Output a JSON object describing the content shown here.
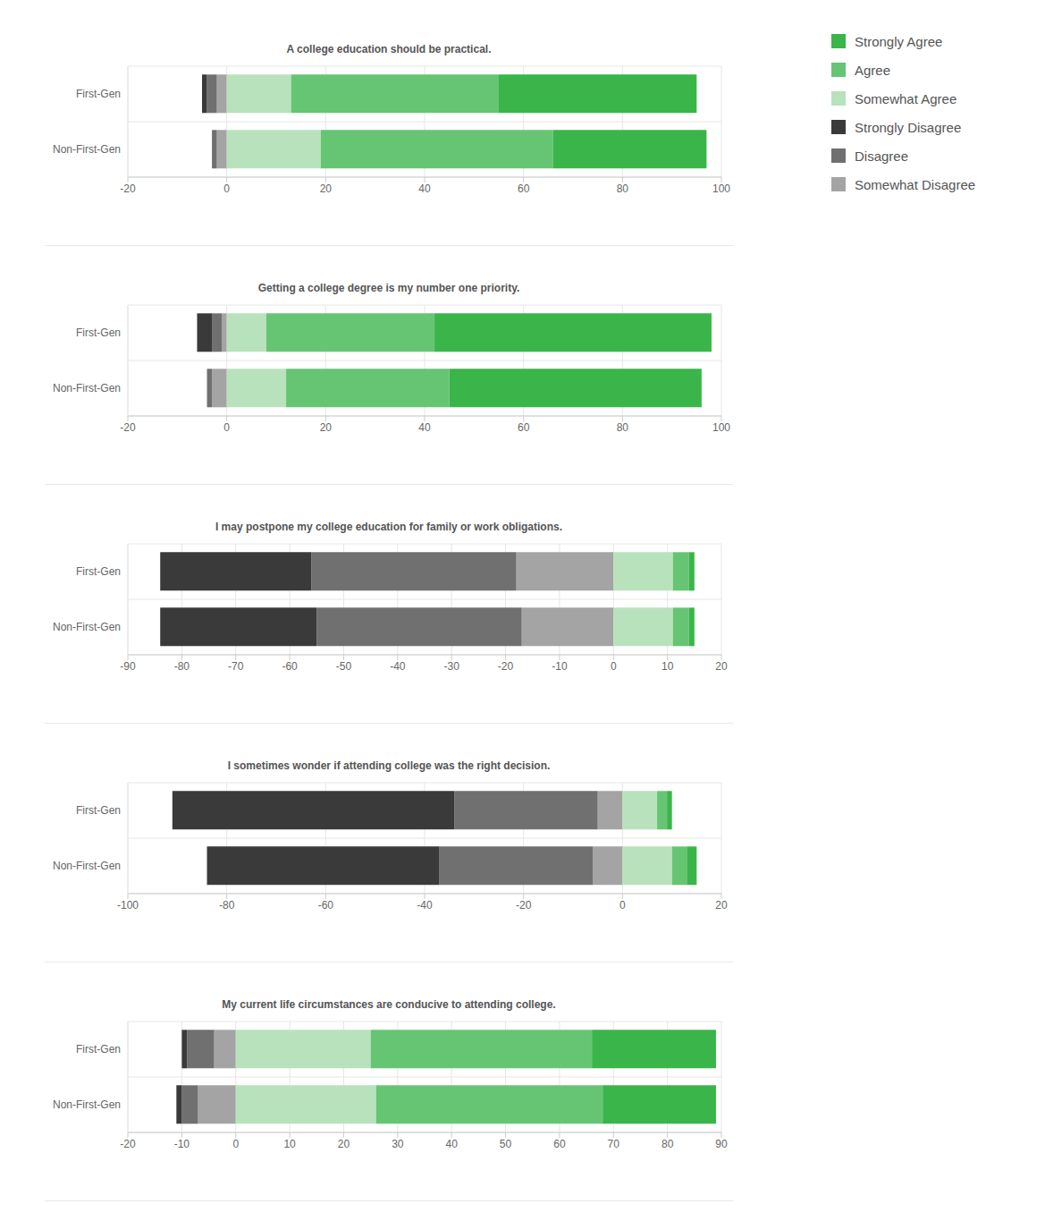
{
  "chart_data": [
    {
      "type": "bar",
      "orientation": "horizontal",
      "stacked": true,
      "grid": true,
      "legend": "top right",
      "title": "A college education should be practical.",
      "categories": [
        "First-Gen",
        "Non-First-Gen"
      ],
      "xlim": [
        -20,
        100
      ],
      "xticks": [
        -20,
        0,
        20,
        40,
        60,
        80,
        100
      ],
      "series": [
        {
          "name": "Strongly Agree",
          "color": "#3ab54a",
          "values": [
            40,
            31
          ]
        },
        {
          "name": "Agree",
          "color": "#66c573",
          "values": [
            42,
            47
          ]
        },
        {
          "name": "Somewhat Agree",
          "color": "#b8e2bc",
          "values": [
            13,
            19
          ]
        },
        {
          "name": "Strongly Disagree",
          "color": "#3a3a3a",
          "values": [
            -1,
            0
          ]
        },
        {
          "name": "Disagree",
          "color": "#707070",
          "values": [
            -2,
            -1
          ]
        },
        {
          "name": "Somewhat Disagree",
          "color": "#a4a4a4",
          "values": [
            -2,
            -2
          ]
        }
      ]
    },
    {
      "type": "bar",
      "orientation": "horizontal",
      "stacked": true,
      "grid": true,
      "title": "Getting a college degree is my number one priority.",
      "categories": [
        "First-Gen",
        "Non-First-Gen"
      ],
      "xlim": [
        -20,
        100
      ],
      "xticks": [
        -20,
        0,
        20,
        40,
        60,
        80,
        100
      ],
      "series": [
        {
          "name": "Strongly Agree",
          "color": "#3ab54a",
          "values": [
            56,
            51
          ]
        },
        {
          "name": "Agree",
          "color": "#66c573",
          "values": [
            34,
            33
          ]
        },
        {
          "name": "Somewhat Agree",
          "color": "#b8e2bc",
          "values": [
            8,
            12
          ]
        },
        {
          "name": "Strongly Disagree",
          "color": "#3a3a3a",
          "values": [
            -3,
            0
          ]
        },
        {
          "name": "Disagree",
          "color": "#707070",
          "values": [
            -2,
            -1
          ]
        },
        {
          "name": "Somewhat Disagree",
          "color": "#a4a4a4",
          "values": [
            -1,
            -3
          ]
        }
      ]
    },
    {
      "type": "bar",
      "orientation": "horizontal",
      "stacked": true,
      "grid": true,
      "title": "I may postpone my college education for family or work obligations.",
      "categories": [
        "First-Gen",
        "Non-First-Gen"
      ],
      "xlim": [
        -90,
        20
      ],
      "xticks": [
        -90,
        -80,
        -70,
        -60,
        -50,
        -40,
        -30,
        -20,
        -10,
        0,
        10,
        20
      ],
      "series": [
        {
          "name": "Strongly Agree",
          "color": "#3ab54a",
          "values": [
            1,
            1
          ]
        },
        {
          "name": "Agree",
          "color": "#66c573",
          "values": [
            3,
            3
          ]
        },
        {
          "name": "Somewhat Agree",
          "color": "#b8e2bc",
          "values": [
            11,
            11
          ]
        },
        {
          "name": "Strongly Disagree",
          "color": "#3a3a3a",
          "values": [
            -28,
            -29
          ]
        },
        {
          "name": "Disagree",
          "color": "#707070",
          "values": [
            -38,
            -38
          ]
        },
        {
          "name": "Somewhat Disagree",
          "color": "#a4a4a4",
          "values": [
            -18,
            -17
          ]
        }
      ]
    },
    {
      "type": "bar",
      "orientation": "horizontal",
      "stacked": true,
      "grid": true,
      "title": "I sometimes wonder if attending college was the right decision.",
      "categories": [
        "First-Gen",
        "Non-First-Gen"
      ],
      "xlim": [
        -100,
        20
      ],
      "xticks": [
        -100,
        -80,
        -60,
        -40,
        -20,
        0,
        20
      ],
      "series": [
        {
          "name": "Strongly Agree",
          "color": "#3ab54a",
          "values": [
            1,
            2
          ]
        },
        {
          "name": "Agree",
          "color": "#66c573",
          "values": [
            2,
            3
          ]
        },
        {
          "name": "Somewhat Agree",
          "color": "#b8e2bc",
          "values": [
            7,
            10
          ]
        },
        {
          "name": "Strongly Disagree",
          "color": "#3a3a3a",
          "values": [
            -57,
            -47
          ]
        },
        {
          "name": "Disagree",
          "color": "#707070",
          "values": [
            -29,
            -31
          ]
        },
        {
          "name": "Somewhat Disagree",
          "color": "#a4a4a4",
          "values": [
            -5,
            -6
          ]
        }
      ]
    },
    {
      "type": "bar",
      "orientation": "horizontal",
      "stacked": true,
      "grid": true,
      "title": "My current life circumstances are conducive to attending college.",
      "categories": [
        "First-Gen",
        "Non-First-Gen"
      ],
      "xlim": [
        -20,
        90
      ],
      "xticks": [
        -20,
        -10,
        0,
        10,
        20,
        30,
        40,
        50,
        60,
        70,
        80,
        90
      ],
      "series": [
        {
          "name": "Strongly Agree",
          "color": "#3ab54a",
          "values": [
            23,
            21
          ]
        },
        {
          "name": "Agree",
          "color": "#66c573",
          "values": [
            41,
            42
          ]
        },
        {
          "name": "Somewhat Agree",
          "color": "#b8e2bc",
          "values": [
            25,
            26
          ]
        },
        {
          "name": "Strongly Disagree",
          "color": "#3a3a3a",
          "values": [
            -1,
            -1
          ]
        },
        {
          "name": "Disagree",
          "color": "#707070",
          "values": [
            -5,
            -3
          ]
        },
        {
          "name": "Somewhat Disagree",
          "color": "#a4a4a4",
          "values": [
            -4,
            -7
          ]
        }
      ]
    }
  ]
}
